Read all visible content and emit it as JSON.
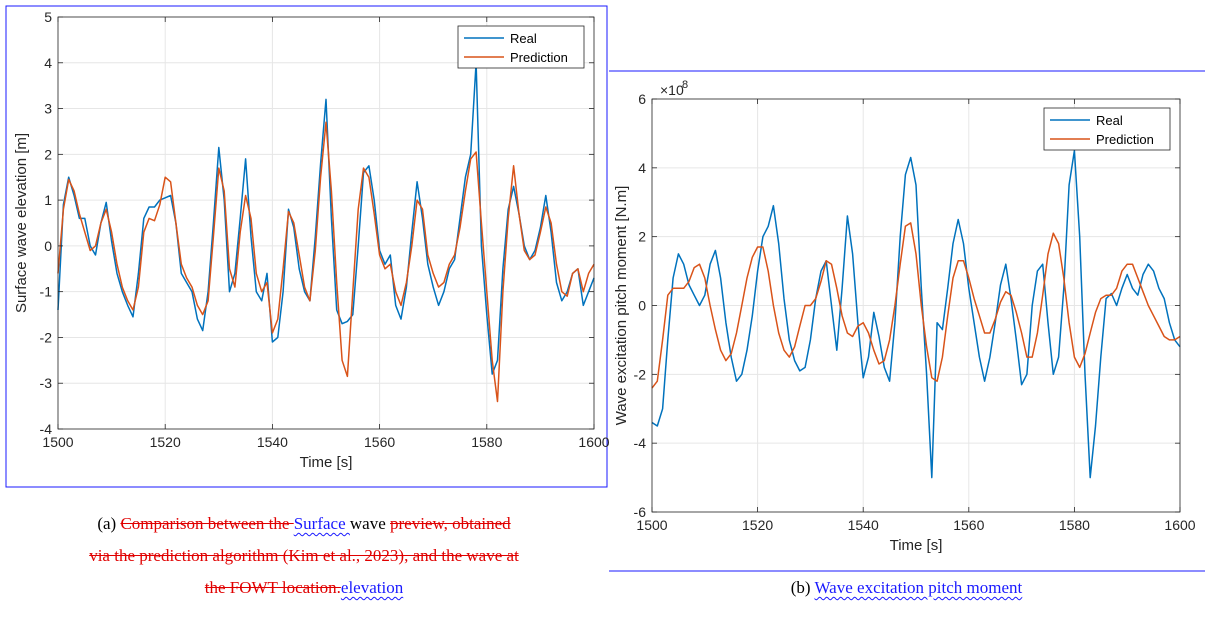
{
  "chart_data": [
    {
      "type": "line",
      "xlabel": "Time [s]",
      "ylabel": "Surface wave elevation [m]",
      "xlim": [
        1500,
        1600
      ],
      "ylim": [
        -4,
        5
      ],
      "xticks": [
        1500,
        1520,
        1540,
        1560,
        1580,
        1600
      ],
      "yticks": [
        -4,
        -3,
        -2,
        -1,
        0,
        1,
        2,
        3,
        4,
        5
      ],
      "grid": true,
      "legend_position": "top-right",
      "series": [
        {
          "name": "Real",
          "color": "#0072BD",
          "x": [
            1500,
            1501,
            1502,
            1503,
            1504,
            1505,
            1506,
            1507,
            1508,
            1509,
            1510,
            1511,
            1512,
            1513,
            1514,
            1515,
            1516,
            1517,
            1518,
            1519,
            1520,
            1521,
            1522,
            1523,
            1524,
            1525,
            1526,
            1527,
            1528,
            1529,
            1530,
            1531,
            1532,
            1533,
            1534,
            1535,
            1536,
            1537,
            1538,
            1539,
            1540,
            1541,
            1542,
            1543,
            1544,
            1545,
            1546,
            1547,
            1548,
            1549,
            1550,
            1551,
            1552,
            1553,
            1554,
            1555,
            1556,
            1557,
            1558,
            1559,
            1560,
            1561,
            1562,
            1563,
            1564,
            1565,
            1566,
            1567,
            1568,
            1569,
            1570,
            1571,
            1572,
            1573,
            1574,
            1575,
            1576,
            1577,
            1578,
            1579,
            1580,
            1581,
            1582,
            1583,
            1584,
            1585,
            1586,
            1587,
            1588,
            1589,
            1590,
            1591,
            1592,
            1593,
            1594,
            1595,
            1596,
            1597,
            1598,
            1599,
            1600
          ],
          "y": [
            -1.4,
            0.9,
            1.5,
            1.1,
            0.6,
            0.6,
            0.0,
            -0.2,
            0.5,
            0.95,
            0.1,
            -0.6,
            -1.0,
            -1.3,
            -1.55,
            -0.6,
            0.6,
            0.85,
            0.85,
            1.0,
            1.05,
            1.1,
            0.5,
            -0.6,
            -0.8,
            -1.0,
            -1.6,
            -1.85,
            -1.0,
            0.5,
            2.15,
            1.0,
            -1.0,
            -0.6,
            0.6,
            1.9,
            0.2,
            -1.0,
            -1.2,
            -0.6,
            -2.1,
            -2.0,
            -1.0,
            0.8,
            0.4,
            -0.5,
            -1.0,
            -1.2,
            0.2,
            1.8,
            3.2,
            0.6,
            -1.4,
            -1.7,
            -1.65,
            -1.5,
            0.0,
            1.6,
            1.75,
            1.0,
            -0.1,
            -0.4,
            -0.2,
            -1.3,
            -1.6,
            -0.9,
            0.3,
            1.4,
            0.6,
            -0.4,
            -0.9,
            -1.3,
            -1.0,
            -0.5,
            -0.3,
            0.6,
            1.5,
            2.0,
            4.0,
            0.0,
            -1.5,
            -2.8,
            -2.5,
            -0.5,
            0.8,
            1.3,
            0.7,
            0.0,
            -0.3,
            -0.1,
            0.4,
            1.1,
            0.3,
            -0.8,
            -1.2,
            -1.0,
            -0.6,
            -0.5,
            -1.3,
            -1.0,
            -0.7
          ]
        },
        {
          "name": "Prediction",
          "color": "#D95319",
          "x": [
            1500,
            1501,
            1502,
            1503,
            1504,
            1505,
            1506,
            1507,
            1508,
            1509,
            1510,
            1511,
            1512,
            1513,
            1514,
            1515,
            1516,
            1517,
            1518,
            1519,
            1520,
            1521,
            1522,
            1523,
            1524,
            1525,
            1526,
            1527,
            1528,
            1529,
            1530,
            1531,
            1532,
            1533,
            1534,
            1535,
            1536,
            1537,
            1538,
            1539,
            1540,
            1541,
            1542,
            1543,
            1544,
            1545,
            1546,
            1547,
            1548,
            1549,
            1550,
            1551,
            1552,
            1553,
            1554,
            1555,
            1556,
            1557,
            1558,
            1559,
            1560,
            1561,
            1562,
            1563,
            1564,
            1565,
            1566,
            1567,
            1568,
            1569,
            1570,
            1571,
            1572,
            1573,
            1574,
            1575,
            1576,
            1577,
            1578,
            1579,
            1580,
            1581,
            1582,
            1583,
            1584,
            1585,
            1586,
            1587,
            1588,
            1589,
            1590,
            1591,
            1592,
            1593,
            1594,
            1595,
            1596,
            1597,
            1598,
            1599,
            1600
          ],
          "y": [
            -0.6,
            0.8,
            1.45,
            1.2,
            0.7,
            0.3,
            -0.1,
            0.0,
            0.5,
            0.8,
            0.3,
            -0.4,
            -0.9,
            -1.2,
            -1.4,
            -0.9,
            0.3,
            0.6,
            0.55,
            0.9,
            1.5,
            1.4,
            0.5,
            -0.4,
            -0.7,
            -0.9,
            -1.3,
            -1.5,
            -1.2,
            0.2,
            1.7,
            1.2,
            -0.5,
            -0.9,
            0.3,
            1.1,
            0.6,
            -0.6,
            -1.0,
            -0.8,
            -1.9,
            -1.6,
            -0.5,
            0.75,
            0.5,
            -0.2,
            -0.9,
            -1.2,
            -0.1,
            1.5,
            2.7,
            1.2,
            -0.8,
            -2.5,
            -2.85,
            -1.0,
            0.8,
            1.7,
            1.5,
            0.7,
            -0.2,
            -0.5,
            -0.4,
            -1.0,
            -1.3,
            -0.8,
            0.0,
            1.0,
            0.8,
            -0.2,
            -0.6,
            -0.9,
            -0.8,
            -0.4,
            -0.2,
            0.4,
            1.2,
            1.9,
            2.05,
            0.5,
            -1.0,
            -2.5,
            -3.4,
            -1.0,
            0.6,
            1.75,
            0.7,
            -0.1,
            -0.3,
            -0.2,
            0.3,
            0.85,
            0.5,
            -0.4,
            -1.0,
            -1.1,
            -0.6,
            -0.5,
            -1.0,
            -0.6,
            -0.4
          ]
        }
      ]
    },
    {
      "type": "line",
      "xlabel": "Time [s]",
      "ylabel": "Wave excitation pitch moment [N.m]",
      "yscale_label": "×10",
      "yscale_exp": "8",
      "xlim": [
        1500,
        1600
      ],
      "ylim": [
        -6,
        6
      ],
      "xticks": [
        1500,
        1520,
        1540,
        1560,
        1580,
        1600
      ],
      "yticks": [
        -6,
        -4,
        -2,
        0,
        2,
        4,
        6
      ],
      "grid": true,
      "legend_position": "top-right",
      "series": [
        {
          "name": "Real",
          "color": "#0072BD",
          "x": [
            1500,
            1501,
            1502,
            1503,
            1504,
            1505,
            1506,
            1507,
            1508,
            1509,
            1510,
            1511,
            1512,
            1513,
            1514,
            1515,
            1516,
            1517,
            1518,
            1519,
            1520,
            1521,
            1522,
            1523,
            1524,
            1525,
            1526,
            1527,
            1528,
            1529,
            1530,
            1531,
            1532,
            1533,
            1534,
            1535,
            1536,
            1537,
            1538,
            1539,
            1540,
            1541,
            1542,
            1543,
            1544,
            1545,
            1546,
            1547,
            1548,
            1549,
            1550,
            1551,
            1552,
            1553,
            1554,
            1555,
            1556,
            1557,
            1558,
            1559,
            1560,
            1561,
            1562,
            1563,
            1564,
            1565,
            1566,
            1567,
            1568,
            1569,
            1570,
            1571,
            1572,
            1573,
            1574,
            1575,
            1576,
            1577,
            1578,
            1579,
            1580,
            1581,
            1582,
            1583,
            1584,
            1585,
            1586,
            1587,
            1588,
            1589,
            1590,
            1591,
            1592,
            1593,
            1594,
            1595,
            1596,
            1597,
            1598,
            1599,
            1600
          ],
          "y": [
            -3.4,
            -3.5,
            -3.0,
            -1.0,
            0.8,
            1.5,
            1.2,
            0.6,
            0.3,
            0.0,
            0.3,
            1.2,
            1.6,
            0.8,
            -0.5,
            -1.5,
            -2.2,
            -2.0,
            -1.3,
            -0.3,
            1.0,
            2.0,
            2.3,
            2.9,
            1.8,
            0.2,
            -1.0,
            -1.6,
            -1.9,
            -1.8,
            -1.0,
            0.2,
            1.0,
            1.3,
            0.0,
            -1.3,
            0.5,
            2.6,
            1.5,
            -0.5,
            -2.1,
            -1.5,
            -0.2,
            -0.9,
            -1.8,
            -2.2,
            -0.5,
            2.0,
            3.8,
            4.3,
            3.5,
            0.5,
            -2.0,
            -5.0,
            -0.5,
            -0.7,
            0.5,
            1.8,
            2.5,
            1.8,
            0.5,
            -0.5,
            -1.5,
            -2.2,
            -1.5,
            -0.5,
            0.6,
            1.2,
            0.2,
            -1.0,
            -2.3,
            -2.0,
            0.0,
            1.0,
            1.2,
            -0.5,
            -2.0,
            -1.5,
            0.5,
            3.5,
            4.5,
            2.0,
            -2.0,
            -5.0,
            -3.5,
            -1.5,
            0.2,
            0.35,
            0.0,
            0.5,
            0.9,
            0.5,
            0.3,
            0.9,
            1.2,
            1.0,
            0.5,
            0.2,
            -0.5,
            -1.0,
            -1.2
          ]
        },
        {
          "name": "Prediction",
          "color": "#D95319",
          "x": [
            1500,
            1501,
            1502,
            1503,
            1504,
            1505,
            1506,
            1507,
            1508,
            1509,
            1510,
            1511,
            1512,
            1513,
            1514,
            1515,
            1516,
            1517,
            1518,
            1519,
            1520,
            1521,
            1522,
            1523,
            1524,
            1525,
            1526,
            1527,
            1528,
            1529,
            1530,
            1531,
            1532,
            1533,
            1534,
            1535,
            1536,
            1537,
            1538,
            1539,
            1540,
            1541,
            1542,
            1543,
            1544,
            1545,
            1546,
            1547,
            1548,
            1549,
            1550,
            1551,
            1552,
            1553,
            1554,
            1555,
            1556,
            1557,
            1558,
            1559,
            1560,
            1561,
            1562,
            1563,
            1564,
            1565,
            1566,
            1567,
            1568,
            1569,
            1570,
            1571,
            1572,
            1573,
            1574,
            1575,
            1576,
            1577,
            1578,
            1579,
            1580,
            1581,
            1582,
            1583,
            1584,
            1585,
            1586,
            1587,
            1588,
            1589,
            1590,
            1591,
            1592,
            1593,
            1594,
            1595,
            1596,
            1597,
            1598,
            1599,
            1600
          ],
          "y": [
            -2.4,
            -2.2,
            -1.0,
            0.3,
            0.5,
            0.5,
            0.5,
            0.7,
            1.1,
            1.2,
            0.8,
            0.0,
            -0.7,
            -1.3,
            -1.6,
            -1.4,
            -0.8,
            0.0,
            0.8,
            1.4,
            1.7,
            1.7,
            1.0,
            0.0,
            -0.8,
            -1.3,
            -1.5,
            -1.2,
            -0.6,
            0.0,
            0.0,
            0.2,
            0.7,
            1.3,
            1.2,
            0.5,
            -0.3,
            -0.8,
            -0.9,
            -0.6,
            -0.5,
            -0.8,
            -1.3,
            -1.7,
            -1.6,
            -1.0,
            0.0,
            1.2,
            2.3,
            2.4,
            1.5,
            0.0,
            -1.2,
            -2.1,
            -2.2,
            -1.5,
            -0.3,
            0.8,
            1.3,
            1.3,
            0.8,
            0.2,
            -0.3,
            -0.8,
            -0.8,
            -0.4,
            0.1,
            0.4,
            0.3,
            -0.2,
            -0.8,
            -1.5,
            -1.5,
            -0.8,
            0.3,
            1.5,
            2.1,
            1.8,
            0.8,
            -0.5,
            -1.5,
            -1.8,
            -1.4,
            -0.8,
            -0.2,
            0.2,
            0.3,
            0.3,
            0.5,
            1.0,
            1.2,
            1.2,
            0.8,
            0.4,
            0.0,
            -0.3,
            -0.6,
            -0.9,
            -1.0,
            -1.0,
            -0.9
          ]
        }
      ]
    }
  ],
  "caption_a": {
    "prefix": "(a) ",
    "del_1": "Comparison between the ",
    "ins_1": "Surface ",
    "plain_1": "wave ",
    "del_2": "preview, obtained",
    "del_3": "via the prediction algorithm (Kim et al., 2023), and the wave at",
    "del_4": "the FOWT location.",
    "ins_2": "elevation"
  },
  "caption_b": {
    "prefix": "(b) ",
    "ins_1": "Wave excitation pitch moment"
  }
}
